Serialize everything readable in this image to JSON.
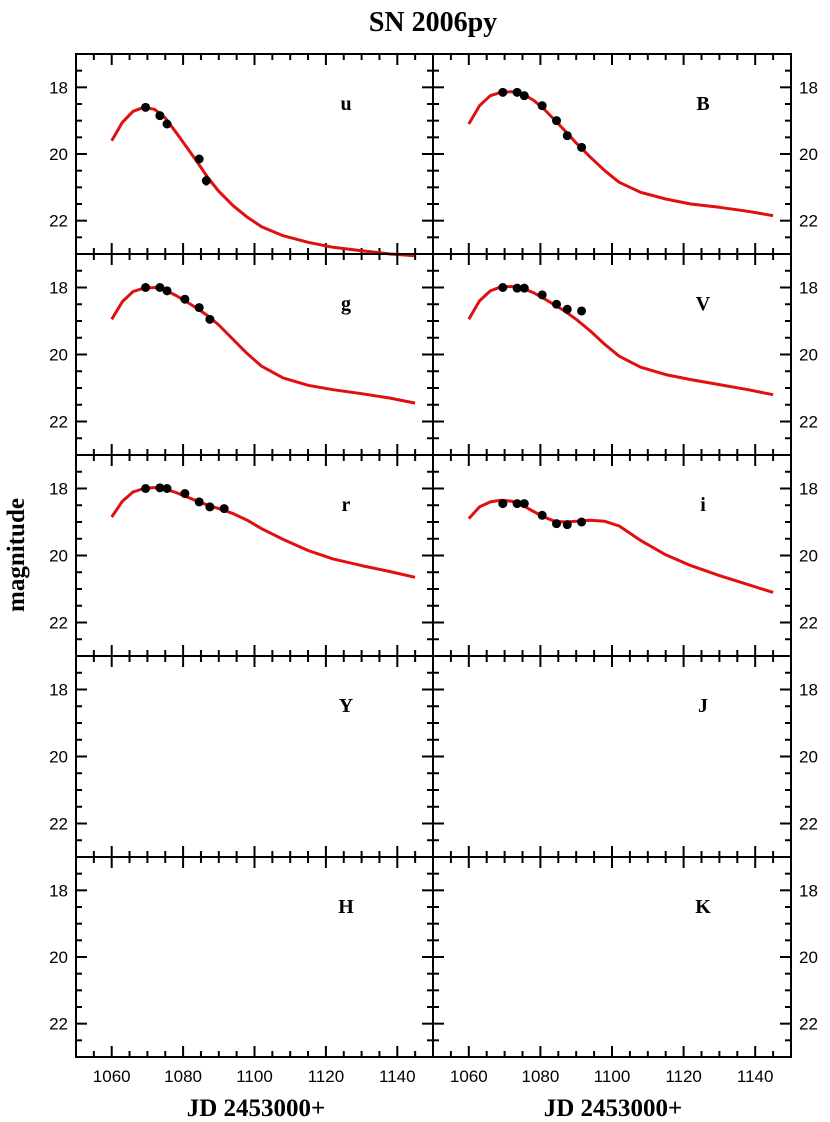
{
  "title": "SN 2006py",
  "ylabel": "magnitude",
  "xlabel": "JD 2453000+",
  "chart_data": {
    "type": "scatter",
    "title": "SN 2006py",
    "xlabel": "JD 2453000+",
    "ylabel": "magnitude",
    "xlim": [
      1050,
      1150
    ],
    "ylim": [
      23,
      17
    ],
    "y_inverted": true,
    "xticks": [
      1060,
      1080,
      1100,
      1120,
      1140
    ],
    "yticks": [
      18,
      20,
      22
    ],
    "grid": false,
    "layout": "5 rows x 2 columns",
    "panels": [
      {
        "band": "u",
        "points": [
          {
            "x": 1069.5,
            "y": 18.6,
            "err": 0.05
          },
          {
            "x": 1073.5,
            "y": 18.85,
            "err": 0.05
          },
          {
            "x": 1075.5,
            "y": 19.1,
            "err": 0.05
          },
          {
            "x": 1084.5,
            "y": 20.15,
            "err": 0.12
          },
          {
            "x": 1086.5,
            "y": 20.8,
            "err": 0.15
          }
        ],
        "model": [
          [
            1060,
            19.6
          ],
          [
            1063,
            19.05
          ],
          [
            1066,
            18.72
          ],
          [
            1069,
            18.6
          ],
          [
            1072,
            18.66
          ],
          [
            1075,
            18.92
          ],
          [
            1078,
            19.35
          ],
          [
            1081,
            19.8
          ],
          [
            1084,
            20.25
          ],
          [
            1087,
            20.72
          ],
          [
            1090,
            21.12
          ],
          [
            1094,
            21.55
          ],
          [
            1098,
            21.9
          ],
          [
            1102,
            22.18
          ],
          [
            1108,
            22.45
          ],
          [
            1115,
            22.65
          ],
          [
            1122,
            22.8
          ],
          [
            1130,
            22.9
          ],
          [
            1138,
            23.0
          ],
          [
            1145,
            23.05
          ]
        ]
      },
      {
        "band": "B",
        "points": [
          {
            "x": 1069.5,
            "y": 18.15,
            "err": 0.05
          },
          {
            "x": 1073.5,
            "y": 18.15,
            "err": 0.05
          },
          {
            "x": 1075.5,
            "y": 18.25,
            "err": 0.05
          },
          {
            "x": 1080.5,
            "y": 18.55,
            "err": 0.05
          },
          {
            "x": 1084.5,
            "y": 19.0,
            "err": 0.06
          },
          {
            "x": 1087.5,
            "y": 19.45,
            "err": 0.06
          },
          {
            "x": 1091.5,
            "y": 19.8,
            "err": 0.12
          }
        ],
        "model": [
          [
            1060,
            19.1
          ],
          [
            1063,
            18.55
          ],
          [
            1066,
            18.25
          ],
          [
            1069,
            18.15
          ],
          [
            1072,
            18.13
          ],
          [
            1075,
            18.2
          ],
          [
            1078,
            18.38
          ],
          [
            1081,
            18.65
          ],
          [
            1084,
            18.98
          ],
          [
            1087,
            19.32
          ],
          [
            1090,
            19.67
          ],
          [
            1094,
            20.1
          ],
          [
            1098,
            20.5
          ],
          [
            1102,
            20.85
          ],
          [
            1108,
            21.15
          ],
          [
            1115,
            21.35
          ],
          [
            1122,
            21.5
          ],
          [
            1130,
            21.6
          ],
          [
            1138,
            21.72
          ],
          [
            1145,
            21.85
          ]
        ]
      },
      {
        "band": "g",
        "points": [
          {
            "x": 1069.5,
            "y": 18.0,
            "err": 0.05
          },
          {
            "x": 1073.5,
            "y": 18.0,
            "err": 0.05
          },
          {
            "x": 1075.5,
            "y": 18.1,
            "err": 0.05
          },
          {
            "x": 1080.5,
            "y": 18.35,
            "err": 0.05
          },
          {
            "x": 1084.5,
            "y": 18.6,
            "err": 0.05
          },
          {
            "x": 1087.5,
            "y": 18.95,
            "err": 0.06
          }
        ],
        "model": [
          [
            1060,
            18.95
          ],
          [
            1063,
            18.42
          ],
          [
            1066,
            18.12
          ],
          [
            1069,
            18.02
          ],
          [
            1072,
            18.0
          ],
          [
            1075,
            18.08
          ],
          [
            1078,
            18.24
          ],
          [
            1081,
            18.43
          ],
          [
            1084,
            18.63
          ],
          [
            1087,
            18.85
          ],
          [
            1090,
            19.12
          ],
          [
            1094,
            19.55
          ],
          [
            1098,
            19.98
          ],
          [
            1102,
            20.35
          ],
          [
            1108,
            20.7
          ],
          [
            1115,
            20.92
          ],
          [
            1122,
            21.05
          ],
          [
            1130,
            21.17
          ],
          [
            1138,
            21.3
          ],
          [
            1145,
            21.45
          ]
        ]
      },
      {
        "band": "V",
        "points": [
          {
            "x": 1069.5,
            "y": 18.0,
            "err": 0.05
          },
          {
            "x": 1073.5,
            "y": 18.02,
            "err": 0.05
          },
          {
            "x": 1075.5,
            "y": 18.02,
            "err": 0.05
          },
          {
            "x": 1080.5,
            "y": 18.22,
            "err": 0.05
          },
          {
            "x": 1084.5,
            "y": 18.5,
            "err": 0.05
          },
          {
            "x": 1087.5,
            "y": 18.65,
            "err": 0.05
          },
          {
            "x": 1091.5,
            "y": 18.7,
            "err": 0.06
          }
        ],
        "model": [
          [
            1060,
            18.95
          ],
          [
            1063,
            18.4
          ],
          [
            1066,
            18.1
          ],
          [
            1069,
            17.98
          ],
          [
            1072,
            17.97
          ],
          [
            1075,
            18.03
          ],
          [
            1078,
            18.15
          ],
          [
            1081,
            18.33
          ],
          [
            1084,
            18.52
          ],
          [
            1087,
            18.72
          ],
          [
            1090,
            18.95
          ],
          [
            1094,
            19.3
          ],
          [
            1098,
            19.7
          ],
          [
            1102,
            20.05
          ],
          [
            1108,
            20.38
          ],
          [
            1115,
            20.6
          ],
          [
            1122,
            20.75
          ],
          [
            1130,
            20.9
          ],
          [
            1138,
            21.05
          ],
          [
            1145,
            21.2
          ]
        ]
      },
      {
        "band": "r",
        "points": [
          {
            "x": 1069.5,
            "y": 18.0,
            "err": 0.05
          },
          {
            "x": 1073.5,
            "y": 17.98,
            "err": 0.05
          },
          {
            "x": 1075.5,
            "y": 18.0,
            "err": 0.05
          },
          {
            "x": 1080.5,
            "y": 18.15,
            "err": 0.05
          },
          {
            "x": 1084.5,
            "y": 18.4,
            "err": 0.05
          },
          {
            "x": 1087.5,
            "y": 18.55,
            "err": 0.05
          },
          {
            "x": 1091.5,
            "y": 18.6,
            "err": 0.05
          }
        ],
        "model": [
          [
            1060,
            18.85
          ],
          [
            1063,
            18.38
          ],
          [
            1066,
            18.1
          ],
          [
            1069,
            18.0
          ],
          [
            1072,
            17.97
          ],
          [
            1075,
            18.02
          ],
          [
            1078,
            18.12
          ],
          [
            1081,
            18.25
          ],
          [
            1084,
            18.38
          ],
          [
            1087,
            18.5
          ],
          [
            1090,
            18.6
          ],
          [
            1094,
            18.75
          ],
          [
            1098,
            18.95
          ],
          [
            1102,
            19.2
          ],
          [
            1108,
            19.52
          ],
          [
            1115,
            19.85
          ],
          [
            1122,
            20.1
          ],
          [
            1130,
            20.3
          ],
          [
            1138,
            20.48
          ],
          [
            1145,
            20.65
          ]
        ]
      },
      {
        "band": "i",
        "points": [
          {
            "x": 1069.5,
            "y": 18.45,
            "err": 0.05
          },
          {
            "x": 1073.5,
            "y": 18.45,
            "err": 0.05
          },
          {
            "x": 1075.5,
            "y": 18.45,
            "err": 0.05
          },
          {
            "x": 1080.5,
            "y": 18.8,
            "err": 0.05
          },
          {
            "x": 1084.5,
            "y": 19.05,
            "err": 0.05
          },
          {
            "x": 1087.5,
            "y": 19.08,
            "err": 0.05
          },
          {
            "x": 1091.5,
            "y": 19.0,
            "err": 0.05
          }
        ],
        "model": [
          [
            1060,
            18.9
          ],
          [
            1063,
            18.55
          ],
          [
            1066,
            18.4
          ],
          [
            1069,
            18.35
          ],
          [
            1072,
            18.38
          ],
          [
            1075,
            18.5
          ],
          [
            1078,
            18.68
          ],
          [
            1081,
            18.85
          ],
          [
            1084,
            18.98
          ],
          [
            1087,
            19.0
          ],
          [
            1090,
            18.98
          ],
          [
            1094,
            18.95
          ],
          [
            1098,
            18.98
          ],
          [
            1102,
            19.12
          ],
          [
            1108,
            19.55
          ],
          [
            1115,
            19.98
          ],
          [
            1122,
            20.3
          ],
          [
            1130,
            20.6
          ],
          [
            1138,
            20.87
          ],
          [
            1145,
            21.1
          ]
        ]
      },
      {
        "band": "Y",
        "points": [],
        "model": []
      },
      {
        "band": "J",
        "points": [],
        "model": []
      },
      {
        "band": "H",
        "points": [],
        "model": []
      },
      {
        "band": "K",
        "points": [],
        "model": []
      }
    ]
  }
}
